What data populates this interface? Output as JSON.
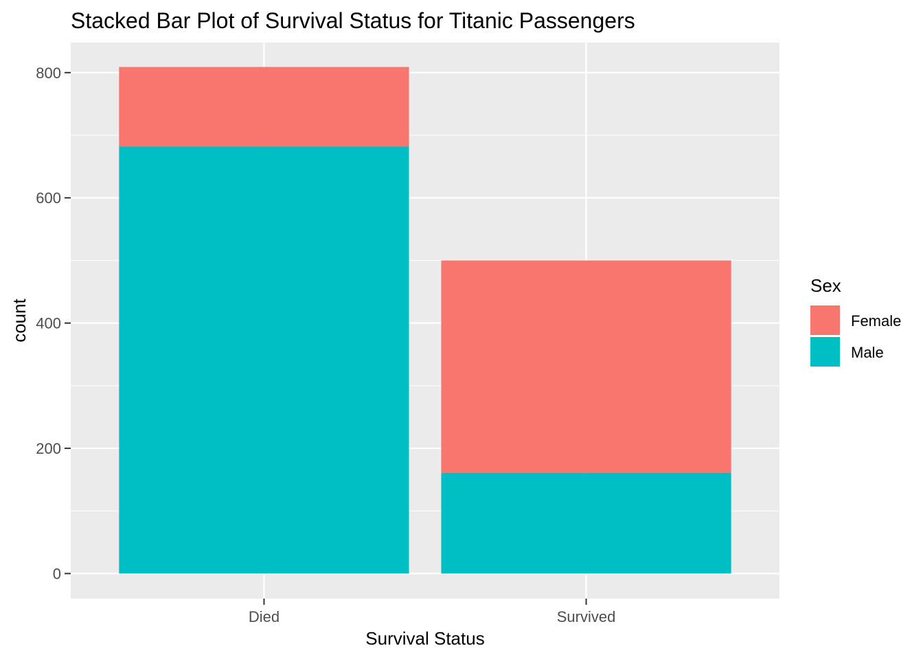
{
  "chart_data": {
    "type": "bar",
    "stacked": true,
    "title": "Stacked Bar Plot of Survival Status for Titanic Passengers",
    "xlabel": "Survival Status",
    "ylabel": "count",
    "categories": [
      "Died",
      "Survived"
    ],
    "series": [
      {
        "name": "Female",
        "values": [
          127,
          339
        ],
        "color": "#F8766D"
      },
      {
        "name": "Male",
        "values": [
          682,
          161
        ],
        "color": "#00BFC4"
      }
    ],
    "ylim": [
      -40,
      848
    ],
    "yticks": [
      0,
      200,
      400,
      600,
      800
    ],
    "grid": true,
    "legend": {
      "title": "Sex",
      "position": "right"
    },
    "panel_background": "#EBEBEB"
  }
}
